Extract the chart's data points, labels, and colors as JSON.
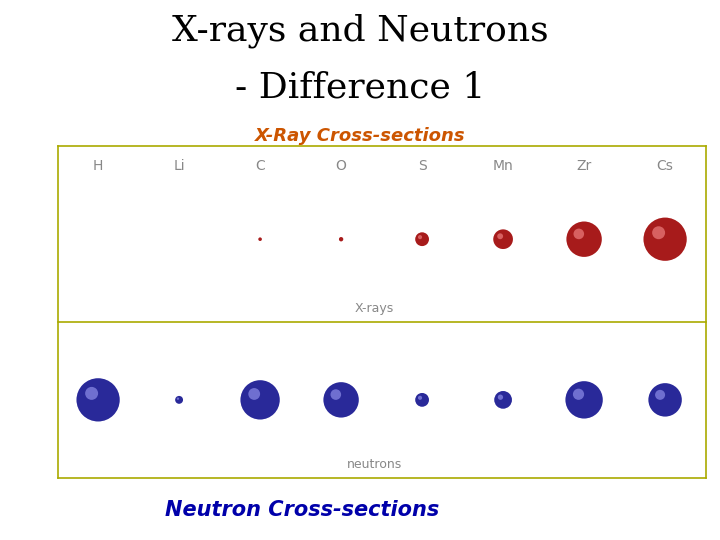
{
  "title_line1": "X-rays and Neutrons",
  "title_line2": "- Difference 1",
  "title_fontsize": 26,
  "title_color": "#000000",
  "subtitle_xray": "X-Ray Cross-sections",
  "subtitle_xray_color": "#cc5500",
  "subtitle_xray_fontsize": 13,
  "subtitle_neutron": "Neutron Cross-sections",
  "subtitle_neutron_color": "#0000aa",
  "subtitle_neutron_fontsize": 15,
  "elements": [
    "H",
    "Li",
    "C",
    "O",
    "S",
    "Mn",
    "Zr",
    "Cs"
  ],
  "xray_radii": [
    0.4,
    0.5,
    1.8,
    2.2,
    7.0,
    10.0,
    18.0,
    22.0
  ],
  "neutron_radii": [
    22.0,
    4.0,
    20.0,
    18.0,
    7.0,
    9.0,
    19.0,
    17.0
  ],
  "xray_color": "#cc2222",
  "neutron_color": "#3333bb",
  "label_xrays": "X-rays",
  "label_neutrons": "neutrons",
  "background_color": "#ffffff",
  "box_border_color": "#aaaa00",
  "element_label_color": "#888888",
  "element_label_fontsize": 10
}
